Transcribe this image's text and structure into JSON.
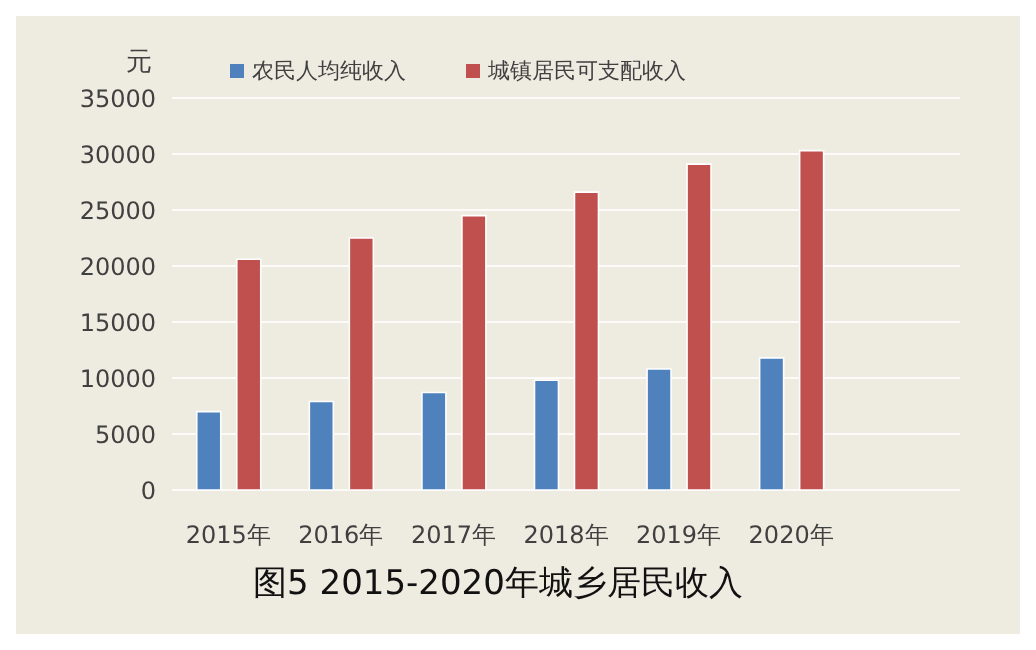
{
  "chart_data": {
    "type": "bar",
    "title": "图5 2015-2020年城乡居民收入",
    "ylabel": "元",
    "categories": [
      "2015年",
      "2016年",
      "2017年",
      "2018年",
      "2019年",
      "2020年",
      null
    ],
    "series": [
      {
        "name": "农民人均纯收入",
        "color": "#4f81bd",
        "values": [
          7000,
          7900,
          8700,
          9800,
          10800,
          11800,
          null
        ]
      },
      {
        "name": "城镇居民可支配收入",
        "color": "#c0504d",
        "values": [
          20600,
          22500,
          24500,
          26600,
          29100,
          30300,
          null
        ]
      }
    ],
    "ylim": [
      0,
      35000
    ],
    "yticks": [
      0,
      5000,
      10000,
      15000,
      20000,
      25000,
      30000,
      35000
    ],
    "grid": "y",
    "legend": "top"
  }
}
